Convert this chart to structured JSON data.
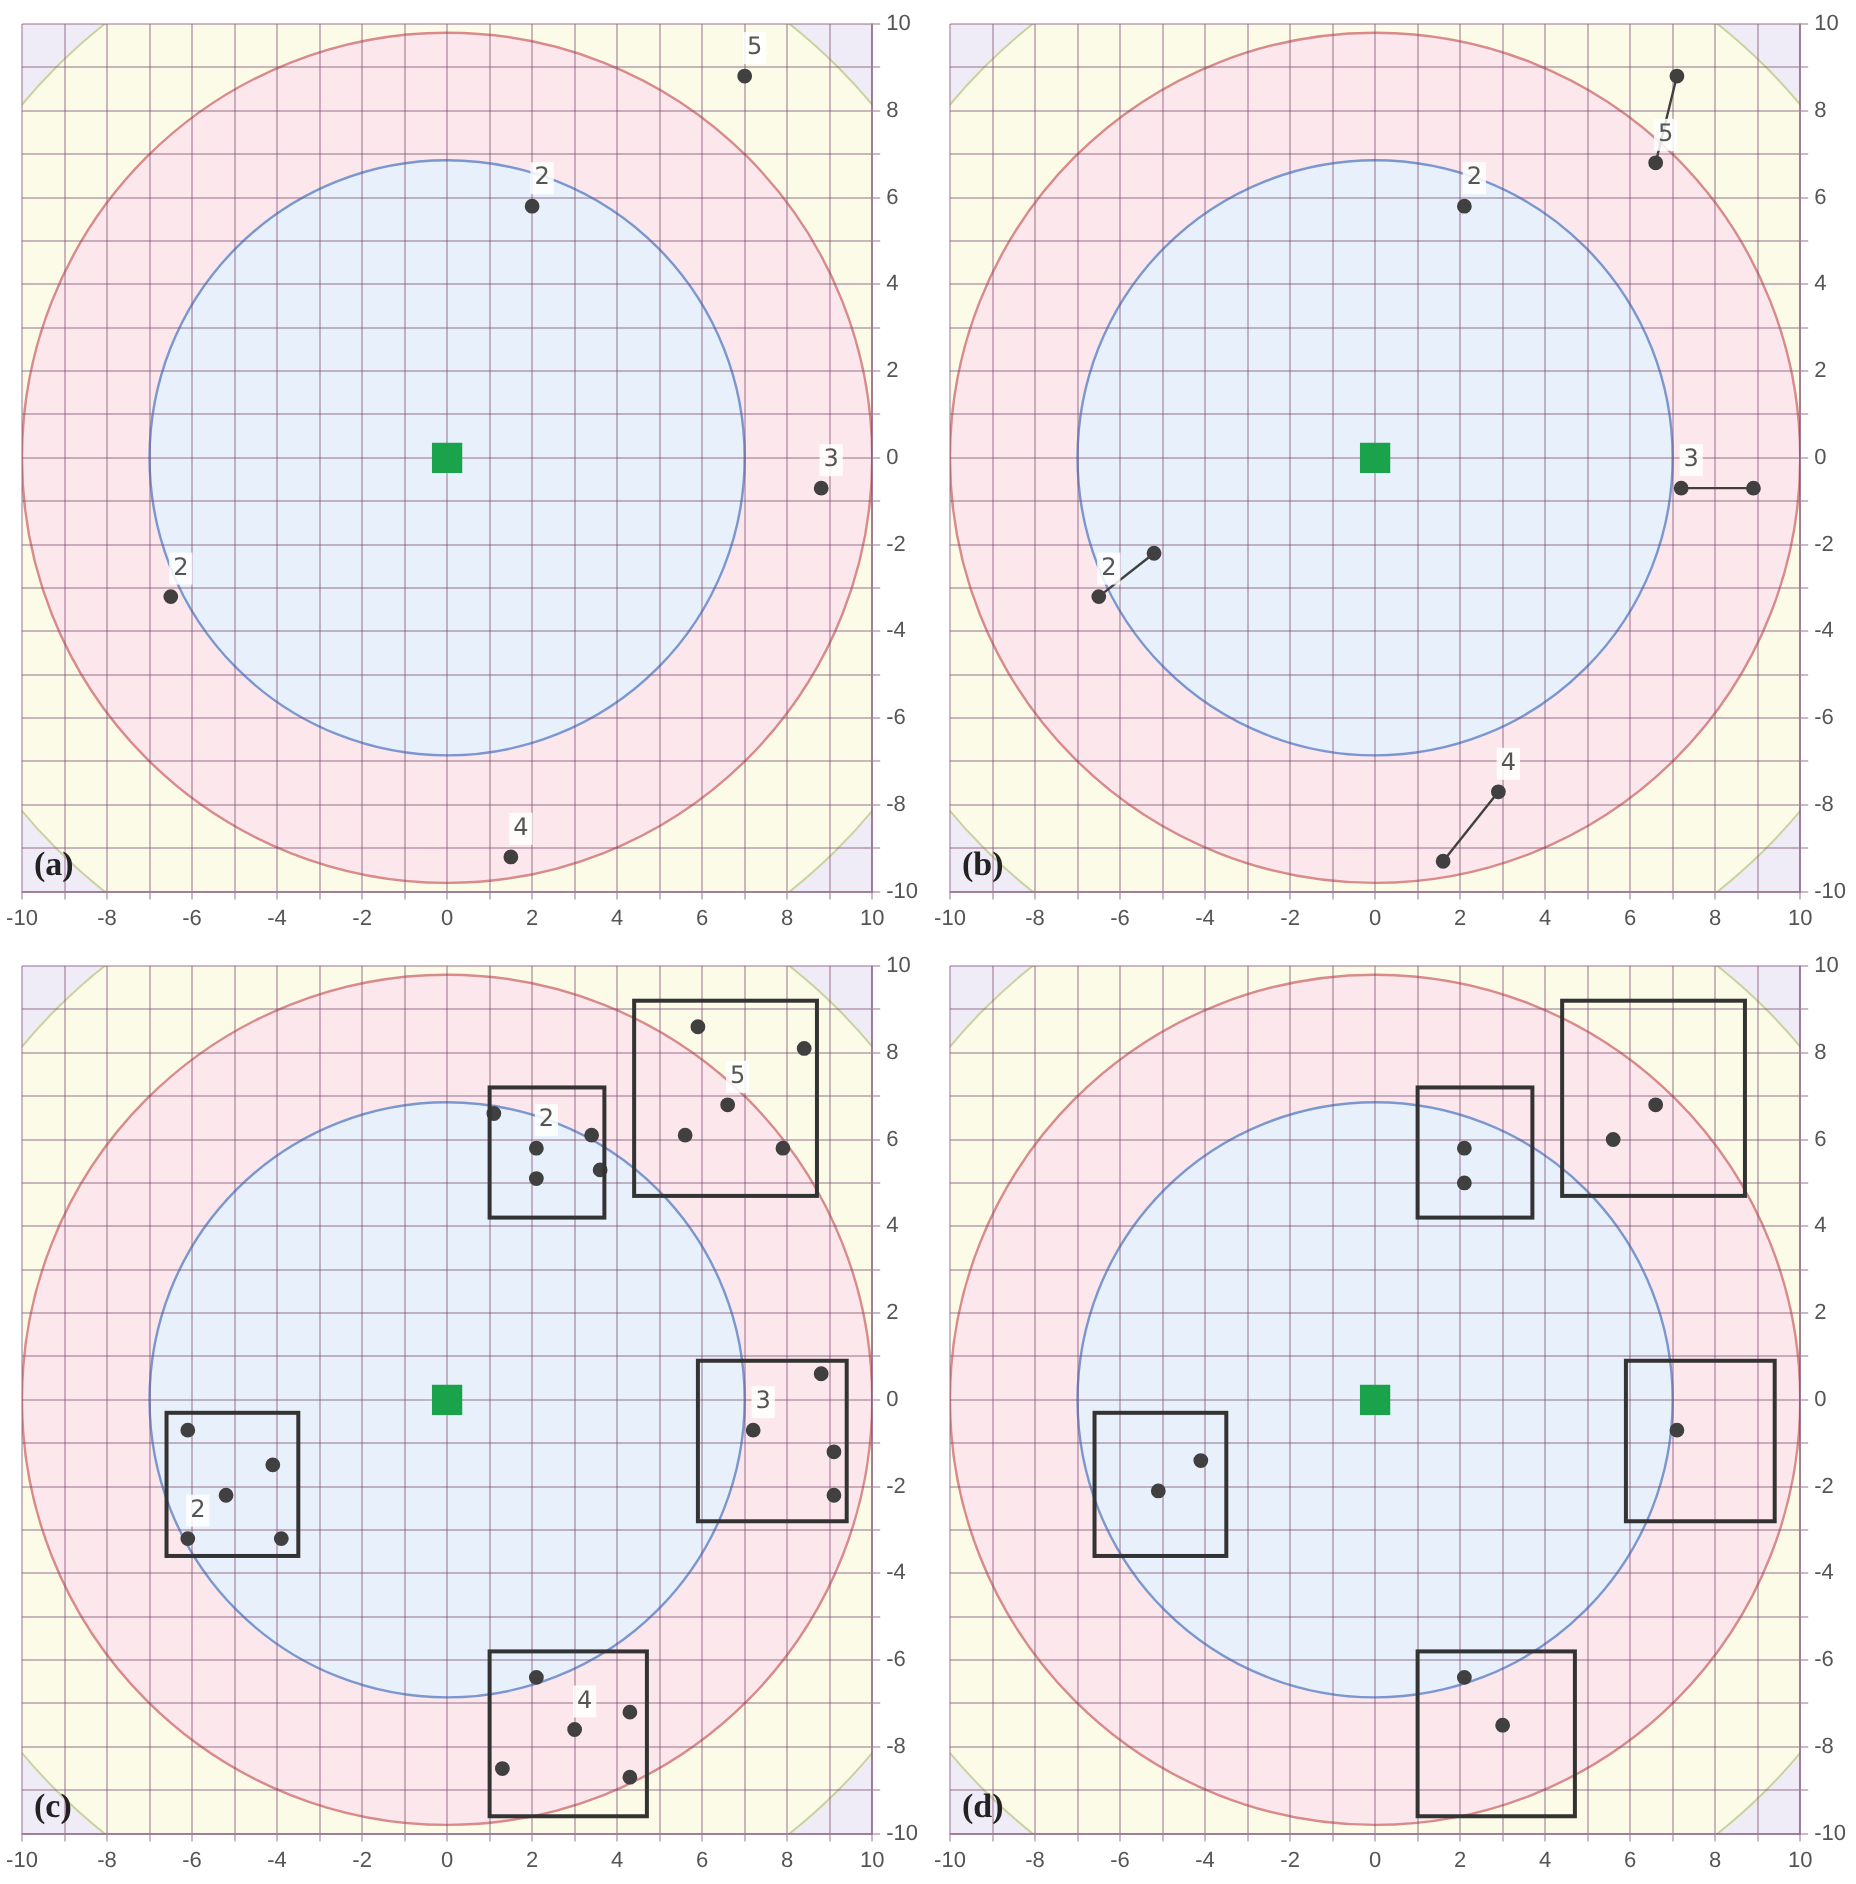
{
  "chart_data": [
    {
      "type": "scatter",
      "xlim": [
        -10,
        10
      ],
      "ylim": [
        -10,
        10
      ],
      "grid": true,
      "marker": "circle",
      "xticks": [
        -10,
        {
          "value": -9,
          "label": null
        },
        -8,
        {
          "value": -7,
          "label": null
        },
        -6,
        {
          "value": -5,
          "label": null
        },
        -4,
        {
          "value": -3,
          "label": null
        },
        -2,
        {
          "value": -1,
          "label": null
        },
        0,
        {
          "value": 1,
          "label": null
        },
        2,
        {
          "value": 3,
          "label": null
        },
        4,
        {
          "value": 5,
          "label": null
        },
        6,
        {
          "value": 7,
          "label": null
        },
        8,
        {
          "value": 9,
          "label": null
        },
        10
      ],
      "yticks": [
        -10,
        {
          "value": -9,
          "label": null
        },
        -8,
        {
          "value": -7,
          "label": null
        },
        -6,
        {
          "value": -5,
          "label": null
        },
        -4,
        {
          "value": -3,
          "label": null
        },
        -2,
        {
          "value": -1,
          "label": null
        },
        0,
        {
          "value": 1,
          "label": null
        },
        2,
        {
          "value": 3,
          "label": null
        },
        4,
        {
          "value": 5,
          "label": null
        },
        6,
        {
          "value": 7,
          "label": null
        },
        8,
        {
          "value": 9,
          "label": null
        },
        10
      ],
      "series": [
        {
          "name": "5",
          "color": "#404040",
          "x": [
            7.0
          ],
          "values": [
            8.8
          ]
        },
        {
          "name": "2",
          "color": "#404040",
          "x": [
            2.0
          ],
          "values": [
            5.8
          ]
        },
        {
          "name": "3",
          "color": "#404040",
          "x": [
            8.8
          ],
          "values": [
            -0.7
          ]
        },
        {
          "name": "2",
          "color": "#404040",
          "x": [
            -6.5
          ],
          "values": [
            -3.2
          ]
        },
        {
          "name": "4",
          "color": "#404040",
          "x": [
            1.5
          ],
          "values": [
            -9.2
          ]
        },
        {
          "color": "#1aa34a",
          "marker": "square",
          "x": [
            0
          ],
          "values": [
            0
          ]
        }
      ],
      "annotations": [
        "(a)"
      ]
    },
    {
      "type": "scatter",
      "xlim": [
        -10,
        10
      ],
      "ylim": [
        -10,
        10
      ],
      "grid": true,
      "marker": "circle",
      "xticks": [
        -10,
        {
          "value": -9,
          "label": null
        },
        -8,
        {
          "value": -7,
          "label": null
        },
        -6,
        {
          "value": -5,
          "label": null
        },
        -4,
        {
          "value": -3,
          "label": null
        },
        -2,
        {
          "value": -1,
          "label": null
        },
        0,
        {
          "value": 1,
          "label": null
        },
        2,
        {
          "value": 3,
          "label": null
        },
        4,
        {
          "value": 5,
          "label": null
        },
        6,
        {
          "value": 7,
          "label": null
        },
        8,
        {
          "value": 9,
          "label": null
        },
        10
      ],
      "yticks": [
        -10,
        {
          "value": -9,
          "label": null
        },
        -8,
        {
          "value": -7,
          "label": null
        },
        -6,
        {
          "value": -5,
          "label": null
        },
        -4,
        {
          "value": -3,
          "label": null
        },
        -2,
        {
          "value": -1,
          "label": null
        },
        0,
        {
          "value": 1,
          "label": null
        },
        2,
        {
          "value": 3,
          "label": null
        },
        4,
        {
          "value": 5,
          "label": null
        },
        6,
        {
          "value": 7,
          "label": null
        },
        8,
        {
          "value": 9,
          "label": null
        },
        10
      ],
      "series": [
        {
          "name": "5",
          "color": "#404040",
          "x": [
            6.6,
            7.1
          ],
          "values": [
            6.8,
            8.8
          ]
        },
        {
          "name": "2",
          "color": "#404040",
          "x": [
            2.1
          ],
          "values": [
            5.8
          ]
        },
        {
          "name": "3",
          "color": "#404040",
          "x": [
            7.2,
            8.9
          ],
          "values": [
            -0.7,
            -0.7
          ]
        },
        {
          "name": "2",
          "color": "#404040",
          "x": [
            -6.5,
            -5.2
          ],
          "values": [
            -3.2,
            -2.2
          ]
        },
        {
          "name": "4",
          "color": "#404040",
          "x": [
            2.9,
            1.6
          ],
          "values": [
            -7.7,
            -9.3
          ]
        },
        {
          "type": "line",
          "marker": "none",
          "color": "#404040",
          "x": [
            7.1,
            6.6
          ],
          "values": [
            8.8,
            6.8
          ]
        },
        {
          "type": "line",
          "marker": "none",
          "color": "#404040",
          "x": [
            7.2,
            8.9
          ],
          "values": [
            -0.7,
            -0.7
          ]
        },
        {
          "type": "line",
          "marker": "none",
          "color": "#404040",
          "x": [
            -6.5,
            -5.2
          ],
          "values": [
            -3.2,
            -2.2
          ]
        },
        {
          "type": "line",
          "marker": "none",
          "color": "#404040",
          "x": [
            1.6,
            2.9
          ],
          "values": [
            -9.3,
            -7.7
          ]
        },
        {
          "color": "#1aa34a",
          "marker": "square",
          "x": [
            0
          ],
          "values": [
            0
          ]
        }
      ],
      "annotations": [
        "(b)"
      ]
    },
    {
      "type": "scatter",
      "xlim": [
        -10,
        10
      ],
      "ylim": [
        -10,
        10
      ],
      "grid": true,
      "marker": "circle",
      "xticks": [
        -10,
        {
          "value": -9,
          "label": null
        },
        -8,
        {
          "value": -7,
          "label": null
        },
        -6,
        {
          "value": -5,
          "label": null
        },
        -4,
        {
          "value": -3,
          "label": null
        },
        -2,
        {
          "value": -1,
          "label": null
        },
        0,
        {
          "value": 1,
          "label": null
        },
        2,
        {
          "value": 3,
          "label": null
        },
        4,
        {
          "value": 5,
          "label": null
        },
        6,
        {
          "value": 7,
          "label": null
        },
        8,
        {
          "value": 9,
          "label": null
        },
        10
      ],
      "yticks": [
        -10,
        {
          "value": -9,
          "label": null
        },
        -8,
        {
          "value": -7,
          "label": null
        },
        -6,
        {
          "value": -5,
          "label": null
        },
        -4,
        {
          "value": -3,
          "label": null
        },
        -2,
        {
          "value": -1,
          "label": null
        },
        0,
        {
          "value": 1,
          "label": null
        },
        2,
        {
          "value": 3,
          "label": null
        },
        4,
        {
          "value": 5,
          "label": null
        },
        6,
        {
          "value": 7,
          "label": null
        },
        8,
        {
          "value": 9,
          "label": null
        },
        10
      ],
      "series": [
        {
          "name": "2",
          "color": "#404040",
          "x": [
            2.1,
            1.1,
            2.1,
            3.4,
            3.6
          ],
          "values": [
            5.8,
            6.6,
            5.1,
            6.1,
            5.3
          ]
        },
        {
          "name": "5",
          "color": "#404040",
          "x": [
            6.6,
            5.9,
            8.4,
            5.6,
            7.9
          ],
          "values": [
            6.8,
            8.6,
            8.1,
            6.1,
            5.8
          ]
        },
        {
          "name": "3",
          "color": "#404040",
          "x": [
            7.2,
            8.8,
            9.1,
            9.1
          ],
          "values": [
            -0.7,
            0.6,
            -1.2,
            -2.2
          ]
        },
        {
          "name": "2",
          "color": "#404040",
          "x": [
            -6.1,
            -6.1,
            -4.1,
            -5.2,
            -3.9
          ],
          "values": [
            -3.2,
            -0.7,
            -1.5,
            -2.2,
            -3.2
          ]
        },
        {
          "name": "4",
          "color": "#404040",
          "x": [
            3.0,
            2.1,
            4.3,
            1.3,
            4.3
          ],
          "values": [
            -7.6,
            -6.4,
            -7.2,
            -8.5,
            -8.7
          ]
        },
        {
          "color": "#1aa34a",
          "marker": "square",
          "x": [
            0
          ],
          "values": [
            0
          ]
        }
      ],
      "annotations": [
        "(c)"
      ]
    },
    {
      "type": "scatter",
      "xlim": [
        -10,
        10
      ],
      "ylim": [
        -10,
        10
      ],
      "grid": true,
      "marker": "circle",
      "xticks": [
        -10,
        {
          "value": -9,
          "label": null
        },
        -8,
        {
          "value": -7,
          "label": null
        },
        -6,
        {
          "value": -5,
          "label": null
        },
        -4,
        {
          "value": -3,
          "label": null
        },
        -2,
        {
          "value": -1,
          "label": null
        },
        0,
        {
          "value": 1,
          "label": null
        },
        2,
        {
          "value": 3,
          "label": null
        },
        4,
        {
          "value": 5,
          "label": null
        },
        6,
        {
          "value": 7,
          "label": null
        },
        8,
        {
          "value": 9,
          "label": null
        },
        10
      ],
      "yticks": [
        -10,
        {
          "value": -9,
          "label": null
        },
        -8,
        {
          "value": -7,
          "label": null
        },
        -6,
        {
          "value": -5,
          "label": null
        },
        -4,
        {
          "value": -3,
          "label": null
        },
        -2,
        {
          "value": -1,
          "label": null
        },
        0,
        {
          "value": 1,
          "label": null
        },
        2,
        {
          "value": 3,
          "label": null
        },
        4,
        {
          "value": 5,
          "label": null
        },
        6,
        {
          "value": 7,
          "label": null
        },
        8,
        {
          "value": 9,
          "label": null
        },
        10
      ],
      "series": [
        {
          "color": "#404040",
          "x": [
            2.1,
            2.1,
            5.6,
            6.6,
            7.1,
            -4.1,
            -5.1,
            2.1,
            3.0
          ],
          "values": [
            5.8,
            5.0,
            6.0,
            6.8,
            -0.7,
            -1.4,
            -2.1,
            -6.4,
            -7.5
          ]
        },
        {
          "color": "#1aa34a",
          "marker": "square",
          "x": [
            0
          ],
          "values": [
            0
          ]
        }
      ],
      "annotations": [
        "(d)"
      ]
    }
  ]
}
